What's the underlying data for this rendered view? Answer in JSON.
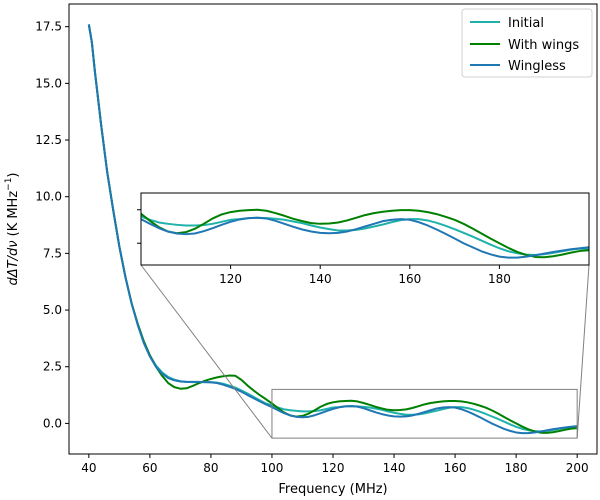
{
  "chart_data": {
    "type": "line",
    "xlabel": "Frequency (MHz)",
    "ylabel_parts": [
      "d",
      "ΔT/dν",
      " (K MHz",
      "−1",
      ")"
    ],
    "xlim": [
      33.5,
      206.5
    ],
    "ylim": [
      -1.35,
      18.5
    ],
    "xticks": [
      40,
      60,
      80,
      100,
      120,
      140,
      160,
      180,
      200
    ],
    "yticks": [
      0.0,
      2.5,
      5.0,
      7.5,
      10.0,
      12.5,
      15.0,
      17.5
    ],
    "ytick_labels": [
      "0.0",
      "2.5",
      "5.0",
      "7.5",
      "10.0",
      "12.5",
      "15.0",
      "17.5"
    ],
    "series": [
      {
        "name": "Initial",
        "color": "#20b2aa",
        "x": [
          40,
          41,
          42,
          44,
          46,
          48,
          50,
          52,
          54,
          56,
          58,
          60,
          62,
          64,
          66,
          68,
          70,
          72,
          74,
          76,
          78,
          80,
          82,
          84,
          86,
          88,
          90,
          92,
          94,
          96,
          98,
          100,
          102,
          104,
          106,
          108,
          110,
          112,
          114,
          116,
          118,
          120,
          122,
          124,
          126,
          128,
          130,
          132,
          134,
          136,
          138,
          140,
          142,
          144,
          146,
          148,
          150,
          152,
          154,
          156,
          158,
          160,
          162,
          164,
          166,
          168,
          170,
          172,
          174,
          176,
          178,
          180,
          182,
          184,
          186,
          188,
          190,
          192,
          194,
          196,
          198,
          200
        ],
        "y": [
          17.6,
          16.8,
          15.5,
          13.2,
          11.1,
          9.4,
          7.8,
          6.45,
          5.3,
          4.4,
          3.62,
          3.0,
          2.55,
          2.25,
          2.05,
          1.93,
          1.86,
          1.83,
          1.82,
          1.82,
          1.82,
          1.82,
          1.8,
          1.75,
          1.67,
          1.58,
          1.45,
          1.32,
          1.17,
          1.02,
          0.88,
          0.8,
          0.7,
          0.62,
          0.58,
          0.55,
          0.53,
          0.53,
          0.54,
          0.58,
          0.64,
          0.7,
          0.72,
          0.75,
          0.76,
          0.75,
          0.73,
          0.7,
          0.65,
          0.6,
          0.53,
          0.47,
          0.42,
          0.38,
          0.38,
          0.4,
          0.44,
          0.5,
          0.56,
          0.63,
          0.69,
          0.72,
          0.72,
          0.68,
          0.61,
          0.52,
          0.42,
          0.31,
          0.2,
          0.08,
          -0.04,
          -0.15,
          -0.24,
          -0.3,
          -0.34,
          -0.35,
          -0.33,
          -0.29,
          -0.24,
          -0.19,
          -0.16,
          -0.16
        ]
      },
      {
        "name": "With wings",
        "color": "#008000",
        "x": [
          40,
          41,
          42,
          44,
          46,
          48,
          50,
          52,
          54,
          56,
          58,
          60,
          62,
          64,
          66,
          68,
          70,
          72,
          74,
          76,
          78,
          80,
          82,
          84,
          86,
          88,
          90,
          92,
          94,
          96,
          98,
          100,
          102,
          104,
          106,
          108,
          110,
          112,
          114,
          116,
          118,
          120,
          122,
          124,
          126,
          128,
          130,
          132,
          134,
          136,
          138,
          140,
          142,
          144,
          146,
          148,
          150,
          152,
          154,
          156,
          158,
          160,
          162,
          164,
          166,
          168,
          170,
          172,
          174,
          176,
          178,
          180,
          182,
          184,
          186,
          188,
          190,
          192,
          194,
          196,
          198,
          200
        ],
        "y": [
          17.6,
          16.8,
          15.5,
          13.2,
          11.1,
          9.4,
          7.8,
          6.45,
          5.3,
          4.4,
          3.62,
          3.0,
          2.5,
          2.1,
          1.78,
          1.6,
          1.53,
          1.55,
          1.65,
          1.77,
          1.88,
          1.96,
          2.03,
          2.08,
          2.11,
          2.1,
          1.92,
          1.67,
          1.45,
          1.25,
          1.07,
          0.88,
          0.67,
          0.48,
          0.35,
          0.3,
          0.33,
          0.43,
          0.58,
          0.74,
          0.86,
          0.93,
          0.97,
          0.99,
          1.0,
          0.97,
          0.9,
          0.82,
          0.73,
          0.66,
          0.6,
          0.58,
          0.59,
          0.62,
          0.68,
          0.76,
          0.84,
          0.9,
          0.94,
          0.97,
          0.99,
          0.99,
          0.97,
          0.93,
          0.87,
          0.79,
          0.7,
          0.58,
          0.44,
          0.29,
          0.14,
          0.0,
          -0.14,
          -0.26,
          -0.35,
          -0.41,
          -0.42,
          -0.39,
          -0.34,
          -0.28,
          -0.23,
          -0.21
        ]
      },
      {
        "name": "Wingless",
        "color": "#1f77b4",
        "x": [
          40,
          41,
          42,
          44,
          46,
          48,
          50,
          52,
          54,
          56,
          58,
          60,
          62,
          64,
          66,
          68,
          70,
          72,
          74,
          76,
          78,
          80,
          82,
          84,
          86,
          88,
          90,
          92,
          94,
          96,
          98,
          100,
          102,
          104,
          106,
          108,
          110,
          112,
          114,
          116,
          118,
          120,
          122,
          124,
          126,
          128,
          130,
          132,
          134,
          136,
          138,
          140,
          142,
          144,
          146,
          148,
          150,
          152,
          154,
          156,
          158,
          160,
          162,
          164,
          166,
          168,
          170,
          172,
          174,
          176,
          178,
          180,
          182,
          184,
          186,
          188,
          190,
          192,
          194,
          196,
          198,
          200
        ],
        "y": [
          17.6,
          16.8,
          15.5,
          13.2,
          11.1,
          9.4,
          7.8,
          6.45,
          5.3,
          4.35,
          3.55,
          2.95,
          2.5,
          2.2,
          2.0,
          1.9,
          1.85,
          1.83,
          1.83,
          1.83,
          1.82,
          1.81,
          1.78,
          1.71,
          1.62,
          1.52,
          1.4,
          1.25,
          1.11,
          0.97,
          0.84,
          0.72,
          0.58,
          0.45,
          0.35,
          0.29,
          0.27,
          0.29,
          0.36,
          0.45,
          0.55,
          0.64,
          0.71,
          0.75,
          0.76,
          0.74,
          0.67,
          0.58,
          0.49,
          0.41,
          0.35,
          0.31,
          0.3,
          0.31,
          0.35,
          0.42,
          0.5,
          0.58,
          0.66,
          0.7,
          0.72,
          0.7,
          0.63,
          0.53,
          0.41,
          0.28,
          0.14,
          0.0,
          -0.12,
          -0.24,
          -0.33,
          -0.4,
          -0.43,
          -0.43,
          -0.4,
          -0.36,
          -0.31,
          -0.26,
          -0.22,
          -0.18,
          -0.15,
          -0.12
        ]
      }
    ],
    "legend": {
      "placement": "top-right"
    },
    "inset": {
      "xlim": [
        100,
        200
      ],
      "ylim": [
        -0.65,
        1.5
      ],
      "xticks": [
        120,
        140,
        160,
        180
      ],
      "zoom_box_x": [
        100,
        200
      ],
      "zoom_box_y": [
        -0.65,
        1.5
      ]
    }
  }
}
